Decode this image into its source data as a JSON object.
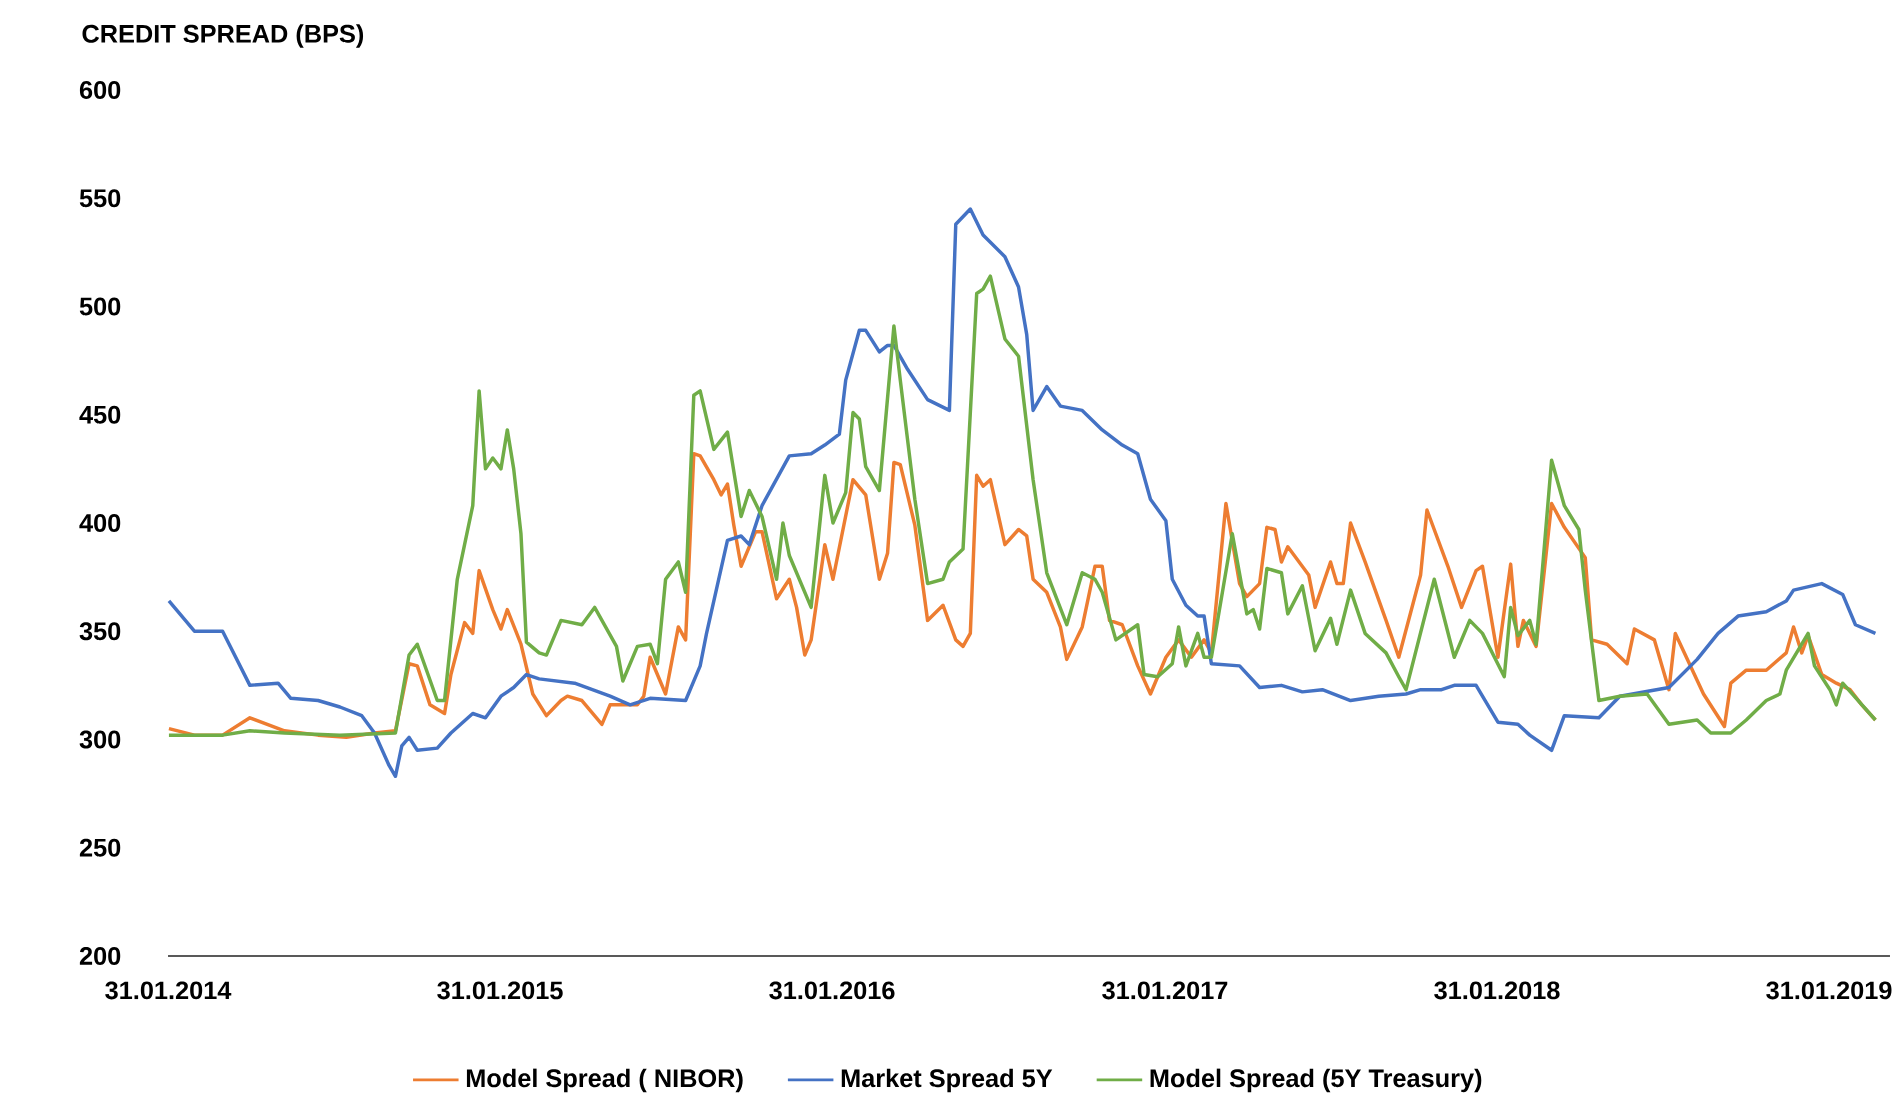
{
  "chart_data": {
    "type": "line",
    "title": "CREDIT SPREAD (BPS)",
    "xlim": [
      "2014-01-31",
      "2019-04-08"
    ],
    "xticks": [
      {
        "value": "2014-01-31",
        "label": "31.01.2014"
      },
      {
        "value": "2015-01-31",
        "label": "31.01.2015"
      },
      {
        "value": "2016-01-31",
        "label": "31.01.2016"
      },
      {
        "value": "2017-01-31",
        "label": "31.01.2017"
      },
      {
        "value": "2018-01-31",
        "label": "31.01.2018"
      },
      {
        "value": "2019-01-31",
        "label": "31.01.2019"
      }
    ],
    "ylim": [
      200,
      600
    ],
    "yticks": [
      200,
      250,
      300,
      350,
      400,
      450,
      500,
      550,
      600
    ],
    "legend": "bottom",
    "series": [
      {
        "name": "Model Spread ( NIBOR)",
        "color": "#ed7d31",
        "x": [
          "2014-02-01",
          "2014-03-01",
          "2014-04-01",
          "2014-05-01",
          "2014-06-08",
          "2014-07-15",
          "2014-08-15",
          "2014-09-15",
          "2014-10-08",
          "2014-10-23",
          "2014-11-01",
          "2014-11-15",
          "2014-12-01",
          "2014-12-08",
          "2014-12-23",
          "2015-01-01",
          "2015-01-08",
          "2015-01-23",
          "2015-02-01",
          "2015-02-08",
          "2015-02-23",
          "2015-03-08",
          "2015-03-23",
          "2015-04-08",
          "2015-04-15",
          "2015-05-01",
          "2015-05-23",
          "2015-06-01",
          "2015-07-01",
          "2015-07-08",
          "2015-07-15",
          "2015-08-01",
          "2015-08-15",
          "2015-08-23",
          "2015-09-01",
          "2015-09-08",
          "2015-09-23",
          "2015-10-01",
          "2015-10-08",
          "2015-10-15",
          "2015-10-23",
          "2015-11-08",
          "2015-11-15",
          "2015-12-01",
          "2015-12-15",
          "2015-12-23",
          "2016-01-01",
          "2016-01-08",
          "2016-01-23",
          "2016-02-01",
          "2016-02-23",
          "2016-03-08",
          "2016-03-23",
          "2016-04-01",
          "2016-04-08",
          "2016-04-15",
          "2016-05-01",
          "2016-05-15",
          "2016-06-01",
          "2016-06-15",
          "2016-06-23",
          "2016-07-01",
          "2016-07-08",
          "2016-07-15",
          "2016-07-23",
          "2016-08-08",
          "2016-08-23",
          "2016-09-01",
          "2016-09-08",
          "2016-09-23",
          "2016-10-08",
          "2016-10-15",
          "2016-11-01",
          "2016-11-15",
          "2016-11-23",
          "2016-12-01",
          "2016-12-15",
          "2017-01-01",
          "2017-01-15",
          "2017-02-01",
          "2017-02-15",
          "2017-03-01",
          "2017-03-15",
          "2017-03-23",
          "2017-04-08",
          "2017-04-23",
          "2017-05-01",
          "2017-05-15",
          "2017-05-23",
          "2017-06-01",
          "2017-06-08",
          "2017-06-15",
          "2017-07-08",
          "2017-07-15",
          "2017-08-01",
          "2017-08-08",
          "2017-08-15",
          "2017-08-23",
          "2017-09-08",
          "2017-10-01",
          "2017-10-15",
          "2017-11-08",
          "2017-11-15",
          "2017-12-08",
          "2017-12-23",
          "2018-01-08",
          "2018-01-15",
          "2018-02-01",
          "2018-02-15",
          "2018-02-23",
          "2018-03-01",
          "2018-03-15",
          "2018-04-01",
          "2018-04-15",
          "2018-05-08",
          "2018-05-15",
          "2018-06-01",
          "2018-06-23",
          "2018-07-01",
          "2018-07-23",
          "2018-08-08",
          "2018-08-15",
          "2018-09-15",
          "2018-10-08",
          "2018-10-15",
          "2018-11-01",
          "2018-11-23",
          "2018-12-15",
          "2018-12-23",
          "2019-01-01",
          "2019-01-08",
          "2019-01-23",
          "2019-02-08",
          "2019-02-23",
          "2019-03-08",
          "2019-03-23"
        ],
        "values": [
          305,
          302,
          302,
          310,
          304,
          302,
          301,
          303,
          304,
          335,
          334,
          316,
          312,
          330,
          354,
          349,
          378,
          360,
          351,
          360,
          344,
          321,
          311,
          318,
          320,
          318,
          307,
          316,
          316,
          320,
          338,
          321,
          352,
          346,
          432,
          431,
          420,
          413,
          418,
          399,
          380,
          396,
          396,
          365,
          374,
          361,
          339,
          346,
          390,
          374,
          420,
          413,
          374,
          386,
          428,
          427,
          399,
          355,
          362,
          346,
          343,
          349,
          422,
          417,
          420,
          390,
          397,
          394,
          374,
          368,
          352,
          337,
          352,
          380,
          380,
          355,
          353,
          334,
          321,
          338,
          346,
          338,
          346,
          340,
          409,
          372,
          366,
          372,
          398,
          397,
          382,
          389,
          376,
          361,
          382,
          372,
          372,
          400,
          382,
          355,
          338,
          376,
          406,
          380,
          361,
          378,
          380,
          338,
          381,
          343,
          355,
          343,
          409,
          398,
          384,
          346,
          344,
          335,
          351,
          346,
          323,
          349,
          321,
          306,
          326,
          332,
          332,
          340,
          352,
          340,
          348,
          330,
          326,
          323,
          316,
          309
        ]
      },
      {
        "name": "Market Spread 5Y",
        "color": "#4472c4",
        "x": [
          "2014-02-01",
          "2014-03-01",
          "2014-04-01",
          "2014-05-01",
          "2014-06-01",
          "2014-06-15",
          "2014-07-15",
          "2014-08-08",
          "2014-09-01",
          "2014-09-15",
          "2014-10-01",
          "2014-10-08",
          "2014-10-15",
          "2014-10-23",
          "2014-11-01",
          "2014-11-23",
          "2014-12-08",
          "2015-01-01",
          "2015-01-15",
          "2015-02-01",
          "2015-02-15",
          "2015-03-01",
          "2015-03-15",
          "2015-04-23",
          "2015-06-01",
          "2015-06-23",
          "2015-07-15",
          "2015-08-23",
          "2015-09-08",
          "2015-09-15",
          "2015-10-08",
          "2015-10-23",
          "2015-11-01",
          "2015-11-15",
          "2015-12-15",
          "2016-01-08",
          "2016-01-23",
          "2016-02-08",
          "2016-02-15",
          "2016-03-01",
          "2016-03-08",
          "2016-03-23",
          "2016-04-01",
          "2016-04-08",
          "2016-04-23",
          "2016-05-15",
          "2016-06-08",
          "2016-06-15",
          "2016-07-01",
          "2016-07-15",
          "2016-08-08",
          "2016-08-23",
          "2016-09-01",
          "2016-09-08",
          "2016-09-23",
          "2016-10-08",
          "2016-11-01",
          "2016-11-23",
          "2016-12-15",
          "2017-01-01",
          "2017-01-15",
          "2017-02-01",
          "2017-02-08",
          "2017-02-23",
          "2017-03-08",
          "2017-03-15",
          "2017-03-23",
          "2017-04-23",
          "2017-05-15",
          "2017-06-08",
          "2017-07-01",
          "2017-07-23",
          "2017-08-23",
          "2017-09-23",
          "2017-10-23",
          "2017-11-08",
          "2017-12-01",
          "2017-12-15",
          "2018-01-08",
          "2018-02-01",
          "2018-02-23",
          "2018-03-08",
          "2018-04-01",
          "2018-04-15",
          "2018-05-23",
          "2018-06-15",
          "2018-08-08",
          "2018-09-08",
          "2018-10-01",
          "2018-10-23",
          "2018-11-23",
          "2018-12-15",
          "2018-12-23",
          "2019-01-23",
          "2019-02-15",
          "2019-03-01",
          "2019-03-23"
        ],
        "values": [
          364,
          350,
          350,
          325,
          326,
          319,
          318,
          315,
          311,
          303,
          288,
          283,
          297,
          301,
          295,
          296,
          303,
          312,
          310,
          320,
          324,
          330,
          328,
          326,
          320,
          316,
          319,
          318,
          334,
          349,
          392,
          394,
          390,
          408,
          431,
          432,
          436,
          441,
          466,
          489,
          489,
          479,
          482,
          482,
          471,
          457,
          452,
          538,
          545,
          533,
          523,
          509,
          487,
          452,
          463,
          454,
          452,
          443,
          436,
          432,
          411,
          401,
          374,
          362,
          357,
          357,
          335,
          334,
          324,
          325,
          322,
          323,
          318,
          320,
          321,
          323,
          323,
          325,
          325,
          308,
          307,
          302,
          295,
          311,
          310,
          320,
          324,
          337,
          349,
          357,
          359,
          364,
          369,
          372,
          367,
          353,
          349
        ]
      },
      {
        "name": "Model Spread (5Y Treasury)",
        "color": "#70ad47",
        "x": [
          "2014-02-01",
          "2014-04-01",
          "2014-05-01",
          "2014-06-08",
          "2014-08-08",
          "2014-10-08",
          "2014-10-23",
          "2014-11-01",
          "2014-11-23",
          "2014-12-01",
          "2014-12-15",
          "2014-12-23",
          "2015-01-01",
          "2015-01-08",
          "2015-01-15",
          "2015-01-23",
          "2015-02-01",
          "2015-02-08",
          "2015-02-15",
          "2015-02-23",
          "2015-03-01",
          "2015-03-15",
          "2015-03-23",
          "2015-04-08",
          "2015-05-01",
          "2015-05-15",
          "2015-06-08",
          "2015-06-15",
          "2015-07-01",
          "2015-07-15",
          "2015-07-23",
          "2015-08-01",
          "2015-08-15",
          "2015-08-23",
          "2015-09-01",
          "2015-09-08",
          "2015-09-23",
          "2015-10-08",
          "2015-10-23",
          "2015-11-01",
          "2015-11-15",
          "2015-12-01",
          "2015-12-08",
          "2015-12-15",
          "2016-01-08",
          "2016-01-23",
          "2016-02-01",
          "2016-02-15",
          "2016-02-23",
          "2016-03-01",
          "2016-03-08",
          "2016-03-23",
          "2016-04-08",
          "2016-04-15",
          "2016-05-01",
          "2016-05-15",
          "2016-06-01",
          "2016-06-08",
          "2016-06-23",
          "2016-07-08",
          "2016-07-15",
          "2016-07-23",
          "2016-08-08",
          "2016-08-23",
          "2016-09-08",
          "2016-09-23",
          "2016-10-15",
          "2016-11-01",
          "2016-11-15",
          "2016-11-23",
          "2016-12-08",
          "2017-01-01",
          "2017-01-08",
          "2017-01-23",
          "2017-02-08",
          "2017-02-15",
          "2017-02-23",
          "2017-03-08",
          "2017-03-15",
          "2017-03-23",
          "2017-04-15",
          "2017-05-01",
          "2017-05-08",
          "2017-05-15",
          "2017-05-23",
          "2017-06-08",
          "2017-06-15",
          "2017-07-01",
          "2017-07-15",
          "2017-08-01",
          "2017-08-08",
          "2017-08-23",
          "2017-09-08",
          "2017-10-01",
          "2017-10-15",
          "2017-10-23",
          "2017-11-23",
          "2017-12-15",
          "2018-01-01",
          "2018-01-15",
          "2018-02-08",
          "2018-02-15",
          "2018-02-23",
          "2018-03-08",
          "2018-03-15",
          "2018-04-01",
          "2018-04-15",
          "2018-05-01",
          "2018-05-08",
          "2018-05-23",
          "2018-06-15",
          "2018-07-15",
          "2018-08-08",
          "2018-09-08",
          "2018-09-23",
          "2018-10-15",
          "2018-11-01",
          "2018-11-23",
          "2018-12-08",
          "2018-12-15",
          "2019-01-08",
          "2019-01-15",
          "2019-02-01",
          "2019-02-08",
          "2019-02-15",
          "2019-03-23"
        ],
        "values": [
          302,
          302,
          304,
          303,
          302,
          303,
          339,
          344,
          318,
          318,
          374,
          390,
          408,
          461,
          425,
          430,
          425,
          443,
          425,
          395,
          345,
          340,
          339,
          355,
          353,
          361,
          343,
          327,
          343,
          344,
          335,
          374,
          382,
          368,
          459,
          461,
          434,
          442,
          403,
          415,
          403,
          374,
          400,
          385,
          361,
          422,
          400,
          414,
          451,
          448,
          426,
          415,
          491,
          466,
          411,
          372,
          374,
          382,
          388,
          506,
          508,
          514,
          485,
          477,
          420,
          377,
          353,
          377,
          374,
          368,
          346,
          353,
          330,
          329,
          335,
          352,
          334,
          349,
          338,
          338,
          395,
          358,
          360,
          351,
          379,
          377,
          358,
          371,
          341,
          356,
          344,
          369,
          349,
          340,
          329,
          323,
          374,
          338,
          355,
          349,
          329,
          361,
          348,
          355,
          344,
          429,
          408,
          397,
          369,
          318,
          320,
          321,
          307,
          309,
          303,
          303,
          309,
          318,
          321,
          332,
          349,
          334,
          323,
          316,
          326,
          309
        ]
      }
    ]
  }
}
